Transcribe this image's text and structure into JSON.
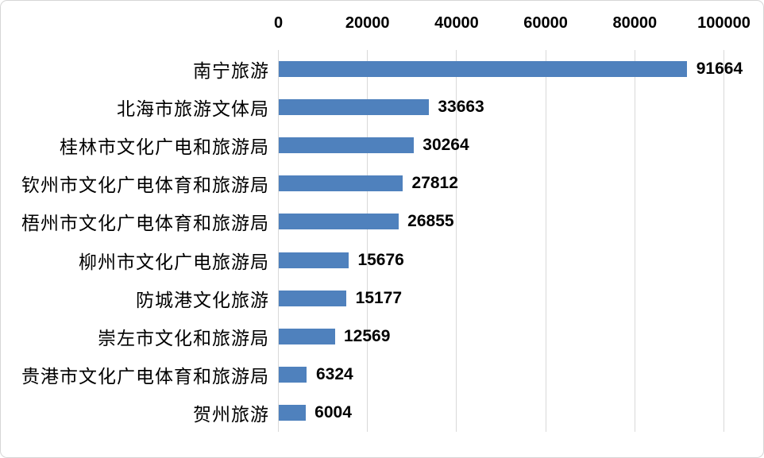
{
  "frame": {
    "background": "#FFFFFF",
    "border_color": "#D6D6D6"
  },
  "chart_data": {
    "type": "bar",
    "orientation": "horizontal",
    "title": "",
    "xlabel": "",
    "ylabel": "",
    "categories": [
      "南宁旅游",
      "北海市旅游文体局",
      "桂林市文化广电和旅游局",
      "钦州市文化广电体育和旅游局",
      "梧州市文化广电体育和旅游局",
      "柳州市文化广电旅游局",
      "防城港文化旅游",
      "崇左市文化和旅游局",
      "贵港市文化广电体育和旅游局",
      "贺州旅游"
    ],
    "values": [
      91664,
      33663,
      30264,
      27812,
      26855,
      15676,
      15177,
      12569,
      6324,
      6004
    ],
    "value_labels": [
      "91664",
      "33663",
      "30264",
      "27812",
      "26855",
      "15676",
      "15177",
      "12569",
      "6324",
      "6004"
    ],
    "xlim": [
      0,
      100000
    ],
    "xticks": [
      0,
      20000,
      40000,
      60000,
      80000,
      100000
    ],
    "xtick_labels": [
      "0",
      "20000",
      "40000",
      "60000",
      "80000",
      "100000"
    ],
    "axis_position": "top",
    "grid": true,
    "legend": false,
    "bar_color": "#4F81BD",
    "gridline_color": "#D9D9D9",
    "text_color": "#000000"
  }
}
